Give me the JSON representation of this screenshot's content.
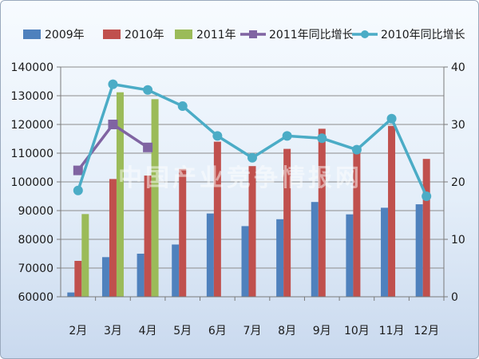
{
  "chart_data": {
    "type": "bar",
    "categories": [
      "2月",
      "3月",
      "4月",
      "5月",
      "6月",
      "7月",
      "8月",
      "9月",
      "10月",
      "11月",
      "12月"
    ],
    "series": [
      {
        "name": "2009年",
        "type": "bar",
        "axis": "left",
        "color": "#4f81bd",
        "values": [
          61500,
          73800,
          75000,
          78200,
          89000,
          84600,
          87000,
          93000,
          88700,
          91000,
          92200
        ]
      },
      {
        "name": "2010年",
        "type": "bar",
        "axis": "left",
        "color": "#c0504d",
        "values": [
          72500,
          101000,
          102200,
          104500,
          114000,
          105500,
          111500,
          118500,
          111500,
          119500,
          108000
        ]
      },
      {
        "name": "2011年",
        "type": "bar",
        "axis": "left",
        "color": "#9bbb59",
        "values": [
          88800,
          131200,
          128800,
          null,
          null,
          null,
          null,
          null,
          null,
          null,
          null
        ]
      },
      {
        "name": "2011年同比增长",
        "type": "line",
        "axis": "right",
        "color": "#8064a2",
        "marker": "square",
        "values": [
          22,
          30,
          26,
          null,
          null,
          null,
          null,
          null,
          null,
          null,
          null
        ]
      },
      {
        "name": "2010年同比增长",
        "type": "line",
        "axis": "right",
        "color": "#4bacc6",
        "marker": "circle",
        "values": [
          18.5,
          37,
          36,
          33.2,
          28,
          24.2,
          28,
          27.6,
          25.6,
          31,
          17.5
        ]
      }
    ],
    "y_left": {
      "min": 60000,
      "max": 140000,
      "step": 10000
    },
    "y_right": {
      "min": 0,
      "max": 40,
      "step": 10
    },
    "grid": true,
    "legend_position": "top",
    "title": "",
    "xlabel": "",
    "ylabel": ""
  },
  "watermark": "中国产业竞争情报网"
}
